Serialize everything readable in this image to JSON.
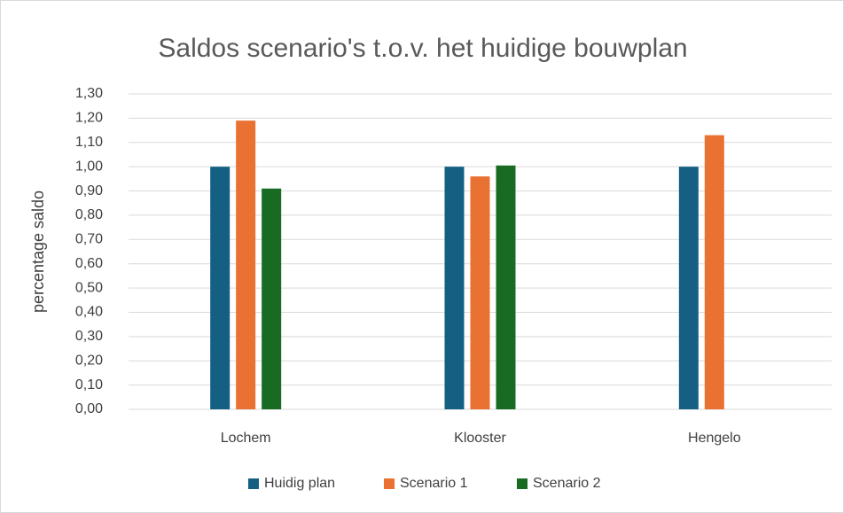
{
  "chart_data": {
    "type": "bar",
    "title": "Saldos scenario's t.o.v. het huidige bouwplan",
    "y_label": "percentage saldo",
    "categories": [
      "Lochem",
      "Klooster",
      "Hengelo"
    ],
    "series": [
      {
        "name": "Huidig plan",
        "color": "#156082",
        "values": [
          1.0,
          1.0,
          1.0
        ]
      },
      {
        "name": "Scenario 1",
        "color": "#e97132",
        "values": [
          1.19,
          0.96,
          1.13
        ]
      },
      {
        "name": "Scenario 2",
        "color": "#196b24",
        "values": [
          0.91,
          1.005,
          null
        ]
      }
    ],
    "ylim": [
      0,
      1.3
    ],
    "yticks": [
      {
        "value": 0,
        "label": "0,00"
      },
      {
        "value": 0.1,
        "label": "0,10"
      },
      {
        "value": 0.2,
        "label": "0,20"
      },
      {
        "value": 0.3,
        "label": "0,30"
      },
      {
        "value": 0.4,
        "label": "0,40"
      },
      {
        "value": 0.5,
        "label": "0,50"
      },
      {
        "value": 0.6,
        "label": "0,60"
      },
      {
        "value": 0.7,
        "label": "0,70"
      },
      {
        "value": 0.8,
        "label": "0,80"
      },
      {
        "value": 0.9,
        "label": "0,90"
      },
      {
        "value": 1.0,
        "label": "1,00"
      },
      {
        "value": 1.1,
        "label": "1,10"
      },
      {
        "value": 1.2,
        "label": "1,20"
      },
      {
        "value": 1.3,
        "label": "1,30"
      }
    ],
    "grid": true,
    "legend": "bottom"
  }
}
